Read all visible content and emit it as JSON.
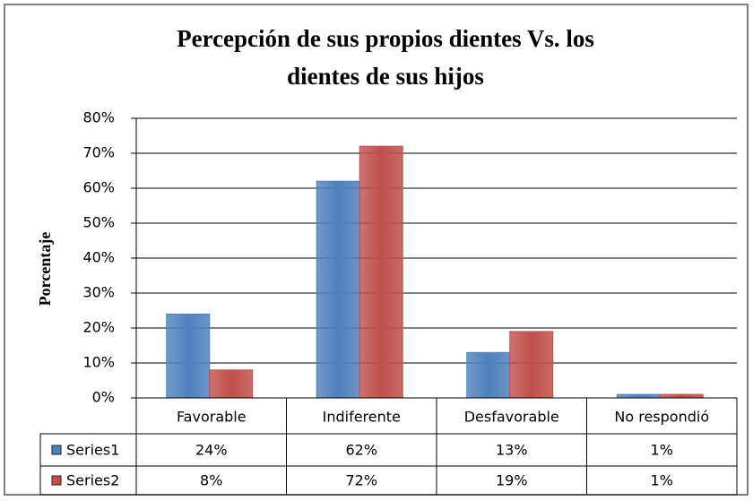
{
  "chart_data": {
    "type": "bar",
    "title": "Percepción de sus propios dientes Vs. los dientes de sus hijos",
    "ylabel": "Porcentaje",
    "categories": [
      "Favorable",
      "Indiferente",
      "Desfavorable",
      "No respondió"
    ],
    "series": [
      {
        "name": "Series1",
        "color": "#4f81bd",
        "values": [
          24,
          62,
          13,
          1
        ],
        "value_labels": [
          "24%",
          "62%",
          "13%",
          "1%"
        ]
      },
      {
        "name": "Series2",
        "color": "#c0504d",
        "values": [
          8,
          72,
          19,
          1
        ],
        "value_labels": [
          "8%",
          "72%",
          "19%",
          "1%"
        ]
      }
    ],
    "ylim": [
      0,
      80
    ],
    "yticks": [
      {
        "value": 0,
        "label": "0%"
      },
      {
        "value": 10,
        "label": "10%"
      },
      {
        "value": 20,
        "label": "20%"
      },
      {
        "value": 30,
        "label": "30%"
      },
      {
        "value": 40,
        "label": "40%"
      },
      {
        "value": 50,
        "label": "50%"
      },
      {
        "value": 60,
        "label": "60%"
      },
      {
        "value": 70,
        "label": "70%"
      },
      {
        "value": 80,
        "label": "80%"
      }
    ],
    "grid": true
  }
}
